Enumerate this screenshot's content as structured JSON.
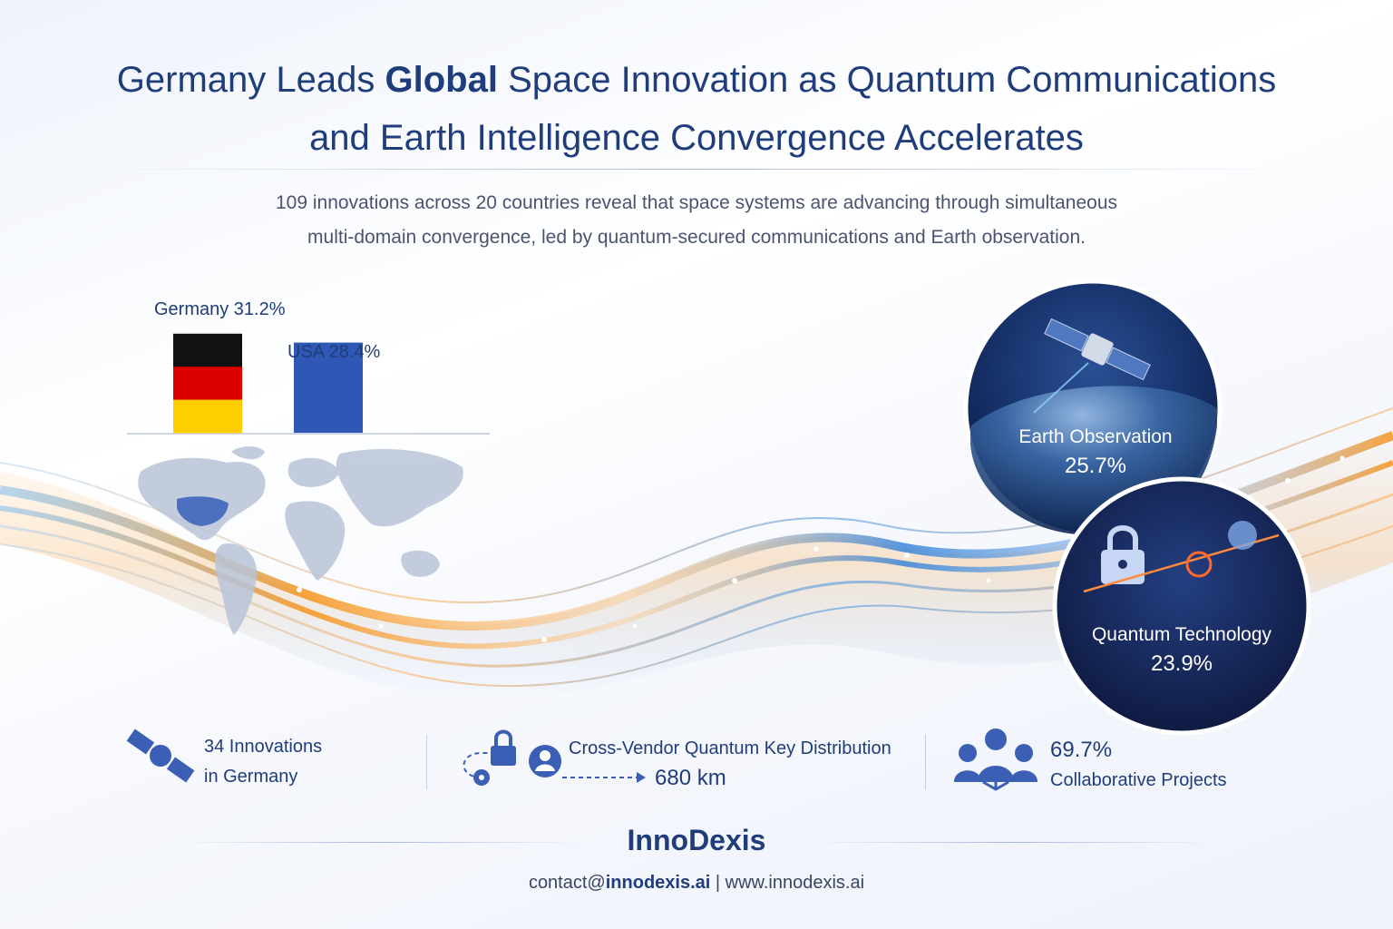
{
  "title": {
    "line1_pre": "Germany Leads ",
    "line1_bold": "Global",
    "line1_post": " Space Innovation as Quantum Communications",
    "line2": "and Earth Intelligence Convergence Accelerates"
  },
  "subtitle": {
    "line1": "109 innovations across 20 countries reveal that space systems are advancing through simultaneous",
    "line2": "multi-domain convergence, led by quantum-secured communications and Earth observation."
  },
  "chart_data": {
    "type": "bar",
    "categories": [
      "Germany",
      "USA"
    ],
    "values": [
      31.2,
      28.4
    ],
    "unit": "%",
    "labels": [
      "Germany 31.2%",
      "USA 28.4%"
    ]
  },
  "circles": [
    {
      "name": "Earth Observation",
      "value": "25.7%"
    },
    {
      "name": "Quantum Technology",
      "value": "23.9%"
    }
  ],
  "stats": {
    "germany_count": "34 Innovations",
    "germany_sub": "in Germany",
    "qkd_label": "Cross-Vendor Quantum Key Distribution",
    "qkd_distance": "680 km",
    "collab_value": "69.7%",
    "collab_label": "Collaborative Projects"
  },
  "footer": {
    "brand": "InnoDexis",
    "email_pre": "contact@",
    "email_bold": "innodexis.ai",
    "separator": " | ",
    "website": "www.innodexis.ai"
  },
  "colors": {
    "title": "#1f3d7a",
    "usa_bar": "#2f57b5",
    "germany_black": "#111111",
    "germany_red": "#dd0000",
    "germany_gold": "#ffce00",
    "wave_orange": "#f7941d",
    "wave_blue": "#2f80d8"
  }
}
